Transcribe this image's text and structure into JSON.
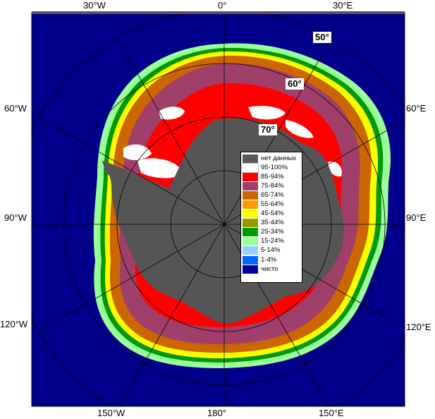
{
  "colors": {
    "ocean": "#00008b",
    "land_nodata": "#555555",
    "map_border": "#000000"
  },
  "coordinate_labels": {
    "top": [
      "30°W",
      "0°",
      "30°E"
    ],
    "left": [
      "60°W",
      "90°W",
      "120°W"
    ],
    "right": [
      "60°E",
      "90°E",
      "120°E"
    ],
    "bottom": [
      "150°W",
      "180°",
      "150°E"
    ]
  },
  "latitude_labels": [
    "50°",
    "60°",
    "70°"
  ],
  "legend": [
    {
      "label": "нет данных",
      "color": "#595959"
    },
    {
      "label": "95-100%",
      "color": "#ffffff"
    },
    {
      "label": "85-94%",
      "color": "#ff0000"
    },
    {
      "label": "75-84%",
      "color": "#a0406a"
    },
    {
      "label": "65-74%",
      "color": "#cc6600"
    },
    {
      "label": "55-64%",
      "color": "#ff9900"
    },
    {
      "label": "45-54%",
      "color": "#ffff00"
    },
    {
      "label": "35-44%",
      "color": "#999900"
    },
    {
      "label": "25-34%",
      "color": "#009900"
    },
    {
      "label": "15-24%",
      "color": "#99ff99"
    },
    {
      "label": "5-14%",
      "color": "#99ccff"
    },
    {
      "label": "1-4%",
      "color": "#0066ff"
    },
    {
      "label": "чисто",
      "color": "#000099"
    }
  ]
}
